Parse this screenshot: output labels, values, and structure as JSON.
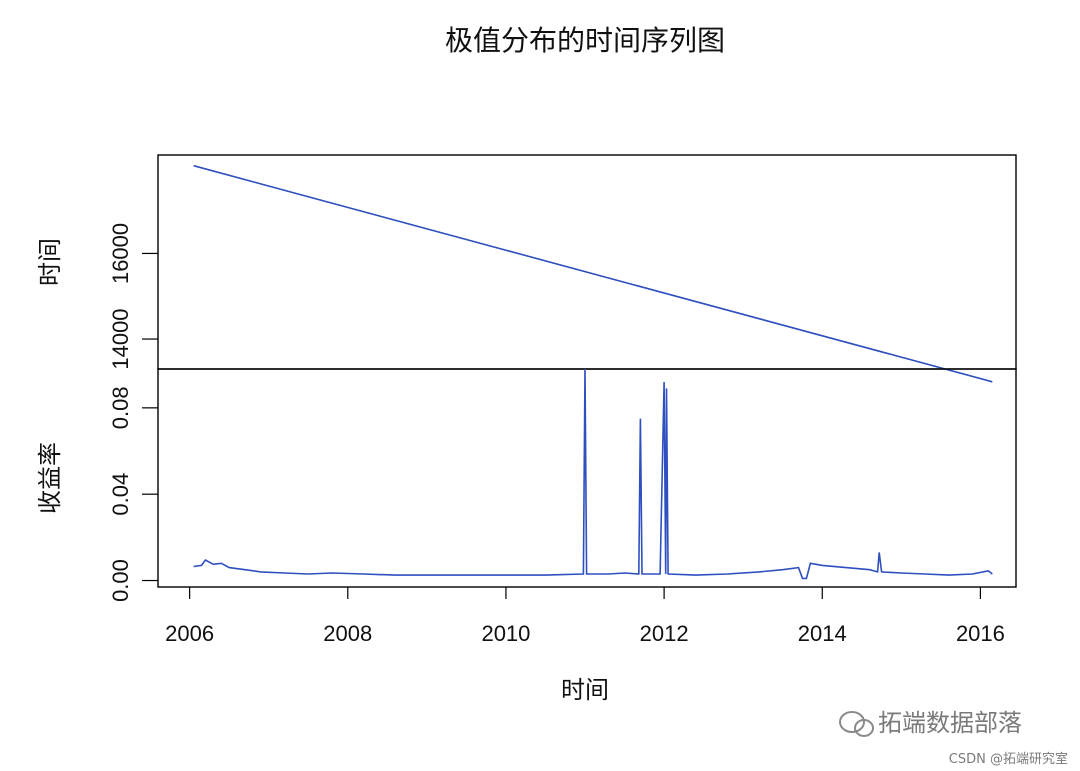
{
  "chart_data": {
    "type": "line",
    "title": "极值分布的时间序列图",
    "xlabel": "时间",
    "xlim": [
      2005.6,
      2016.45
    ],
    "x_ticks": [
      "2006",
      "2008",
      "2010",
      "2012",
      "2014",
      "2016"
    ],
    "panels": [
      {
        "ylabel": "时间",
        "ylim": [
          13300,
          18300
        ],
        "y_ticks": [
          "14000",
          "16000"
        ],
        "series": [
          {
            "values": [
              [
                2006.05,
                18050
              ],
              [
                2016.15,
                13000
              ]
            ]
          }
        ]
      },
      {
        "ylabel": "收益率",
        "ylim": [
          -0.003,
          0.098
        ],
        "y_ticks": [
          "0.00",
          "0.04",
          "0.08"
        ],
        "series": [
          {
            "values": [
              [
                2006.05,
                0.0065
              ],
              [
                2006.15,
                0.007
              ],
              [
                2006.2,
                0.0095
              ],
              [
                2006.3,
                0.0075
              ],
              [
                2006.4,
                0.008
              ],
              [
                2006.5,
                0.006
              ],
              [
                2006.7,
                0.005
              ],
              [
                2006.9,
                0.004
              ],
              [
                2007.2,
                0.0035
              ],
              [
                2007.5,
                0.003
              ],
              [
                2007.8,
                0.0035
              ],
              [
                2008.2,
                0.003
              ],
              [
                2008.6,
                0.0025
              ],
              [
                2009.0,
                0.0025
              ],
              [
                2009.5,
                0.0025
              ],
              [
                2010.0,
                0.0025
              ],
              [
                2010.5,
                0.0025
              ],
              [
                2010.98,
                0.003
              ],
              [
                2011.0,
                0.098
              ],
              [
                2011.02,
                0.003
              ],
              [
                2011.3,
                0.003
              ],
              [
                2011.5,
                0.0035
              ],
              [
                2011.68,
                0.003
              ],
              [
                2011.7,
                0.075
              ],
              [
                2011.72,
                0.003
              ],
              [
                2011.95,
                0.003
              ],
              [
                2012.0,
                0.092
              ],
              [
                2012.02,
                0.003
              ],
              [
                2012.03,
                0.089
              ],
              [
                2012.05,
                0.003
              ],
              [
                2012.4,
                0.0025
              ],
              [
                2012.8,
                0.003
              ],
              [
                2013.2,
                0.004
              ],
              [
                2013.5,
                0.005
              ],
              [
                2013.7,
                0.006
              ],
              [
                2013.75,
                0.001
              ],
              [
                2013.8,
                0.001
              ],
              [
                2013.85,
                0.008
              ],
              [
                2014.0,
                0.007
              ],
              [
                2014.3,
                0.006
              ],
              [
                2014.6,
                0.005
              ],
              [
                2014.7,
                0.004
              ],
              [
                2014.72,
                0.013
              ],
              [
                2014.75,
                0.004
              ],
              [
                2015.0,
                0.0035
              ],
              [
                2015.3,
                0.003
              ],
              [
                2015.6,
                0.0025
              ],
              [
                2015.9,
                0.003
              ],
              [
                2016.1,
                0.0045
              ],
              [
                2016.15,
                0.003
              ]
            ]
          }
        ]
      }
    ]
  },
  "watermark": {
    "main": "拓端数据部落",
    "sub": "CSDN @拓端研究室",
    "icon": "wechat-icon"
  }
}
